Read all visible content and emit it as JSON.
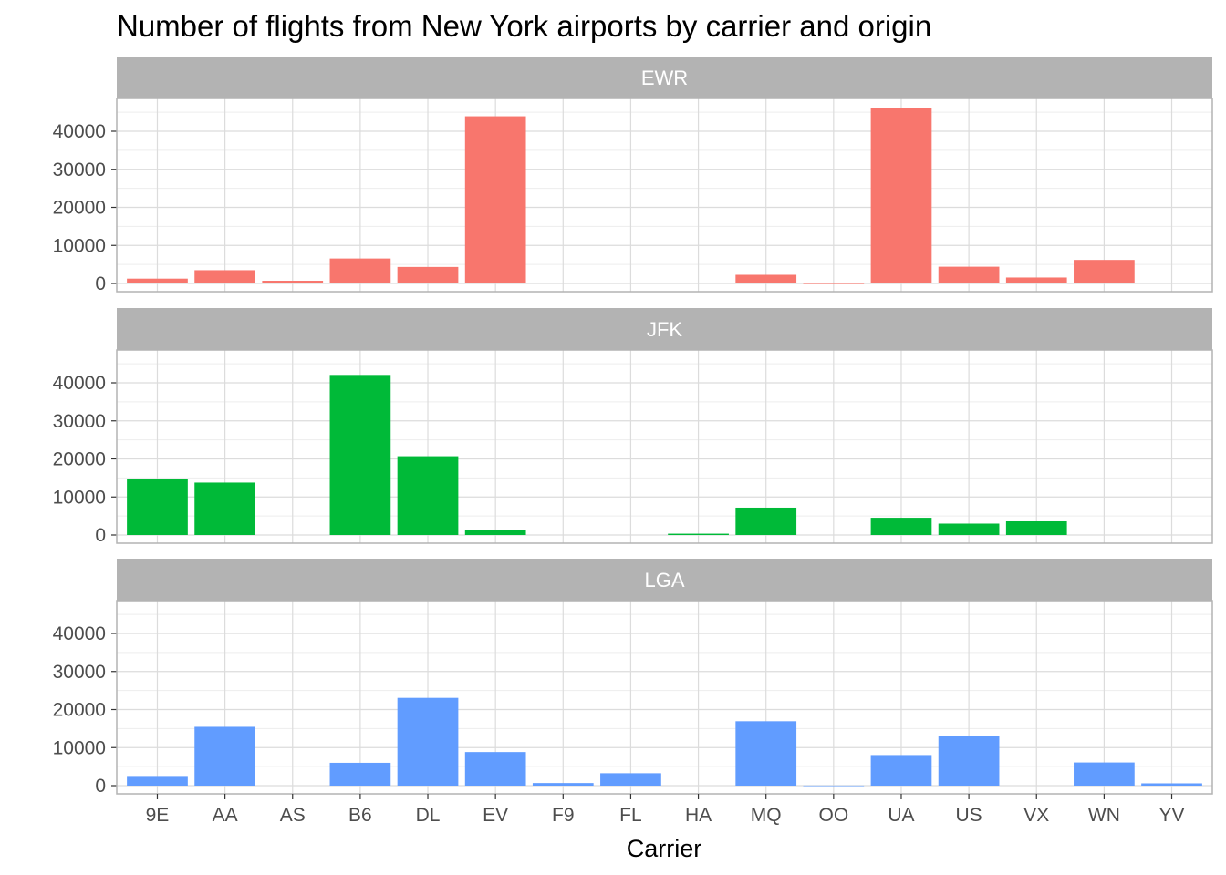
{
  "chart_data": {
    "type": "bar",
    "title": "Number of flights from New York airports by carrier and origin",
    "xlabel": "Carrier",
    "ylabel": "",
    "categories": [
      "9E",
      "AA",
      "AS",
      "B6",
      "DL",
      "EV",
      "F9",
      "FL",
      "HA",
      "MQ",
      "OO",
      "UA",
      "US",
      "VX",
      "WN",
      "YV"
    ],
    "ylim": [
      0,
      48000
    ],
    "yticks": [
      0,
      10000,
      20000,
      30000,
      40000
    ],
    "grid": true,
    "facet_by": "origin",
    "panels": [
      {
        "name": "EWR",
        "color": "#F8766D",
        "values": [
          1268,
          3487,
          714,
          6557,
          4342,
          43939,
          null,
          null,
          null,
          2276,
          6,
          46087,
          4405,
          1566,
          6188,
          null
        ]
      },
      {
        "name": "JFK",
        "color": "#00BA38",
        "values": [
          14651,
          13783,
          null,
          42076,
          20701,
          1408,
          null,
          null,
          342,
          7193,
          null,
          4534,
          2995,
          3596,
          null,
          null
        ]
      },
      {
        "name": "LGA",
        "color": "#619CFF",
        "values": [
          2541,
          15459,
          null,
          6002,
          23067,
          8826,
          685,
          3260,
          null,
          16928,
          26,
          8044,
          13136,
          null,
          6087,
          601
        ]
      }
    ]
  }
}
